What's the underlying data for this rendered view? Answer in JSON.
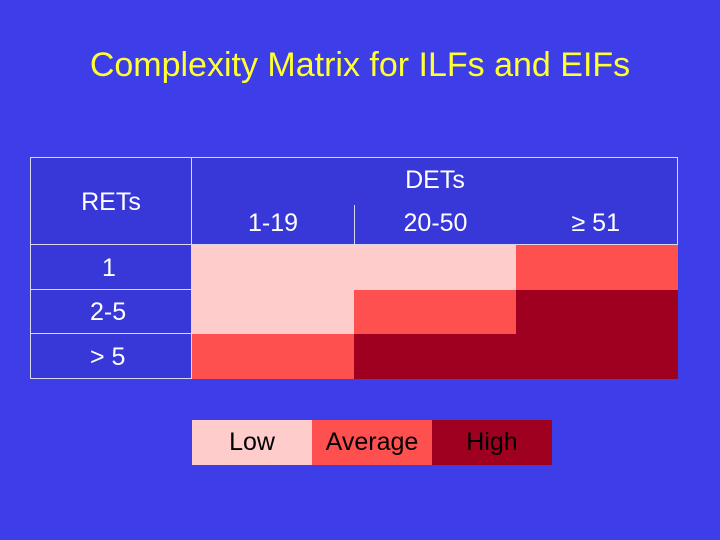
{
  "title": "Complexity Matrix for ILFs and EIFs",
  "matrix": {
    "rets_header": "RETs",
    "dets_header": "DETs",
    "det_ranges": [
      "1-19",
      "20-50",
      "≥ 51"
    ],
    "ret_ranges": [
      "1",
      "2-5",
      "> 5"
    ],
    "rows": [
      [
        "Low",
        "Low",
        "Average"
      ],
      [
        "Low",
        "Average",
        "High"
      ],
      [
        "Average",
        "High",
        "High"
      ]
    ]
  },
  "legend": {
    "low": "Low",
    "average": "Average",
    "high": "High"
  },
  "colors": {
    "background": "#3e3ee8",
    "title": "#ffff33",
    "low": "#ffcccc",
    "average": "#ff5050",
    "high": "#a00020"
  }
}
